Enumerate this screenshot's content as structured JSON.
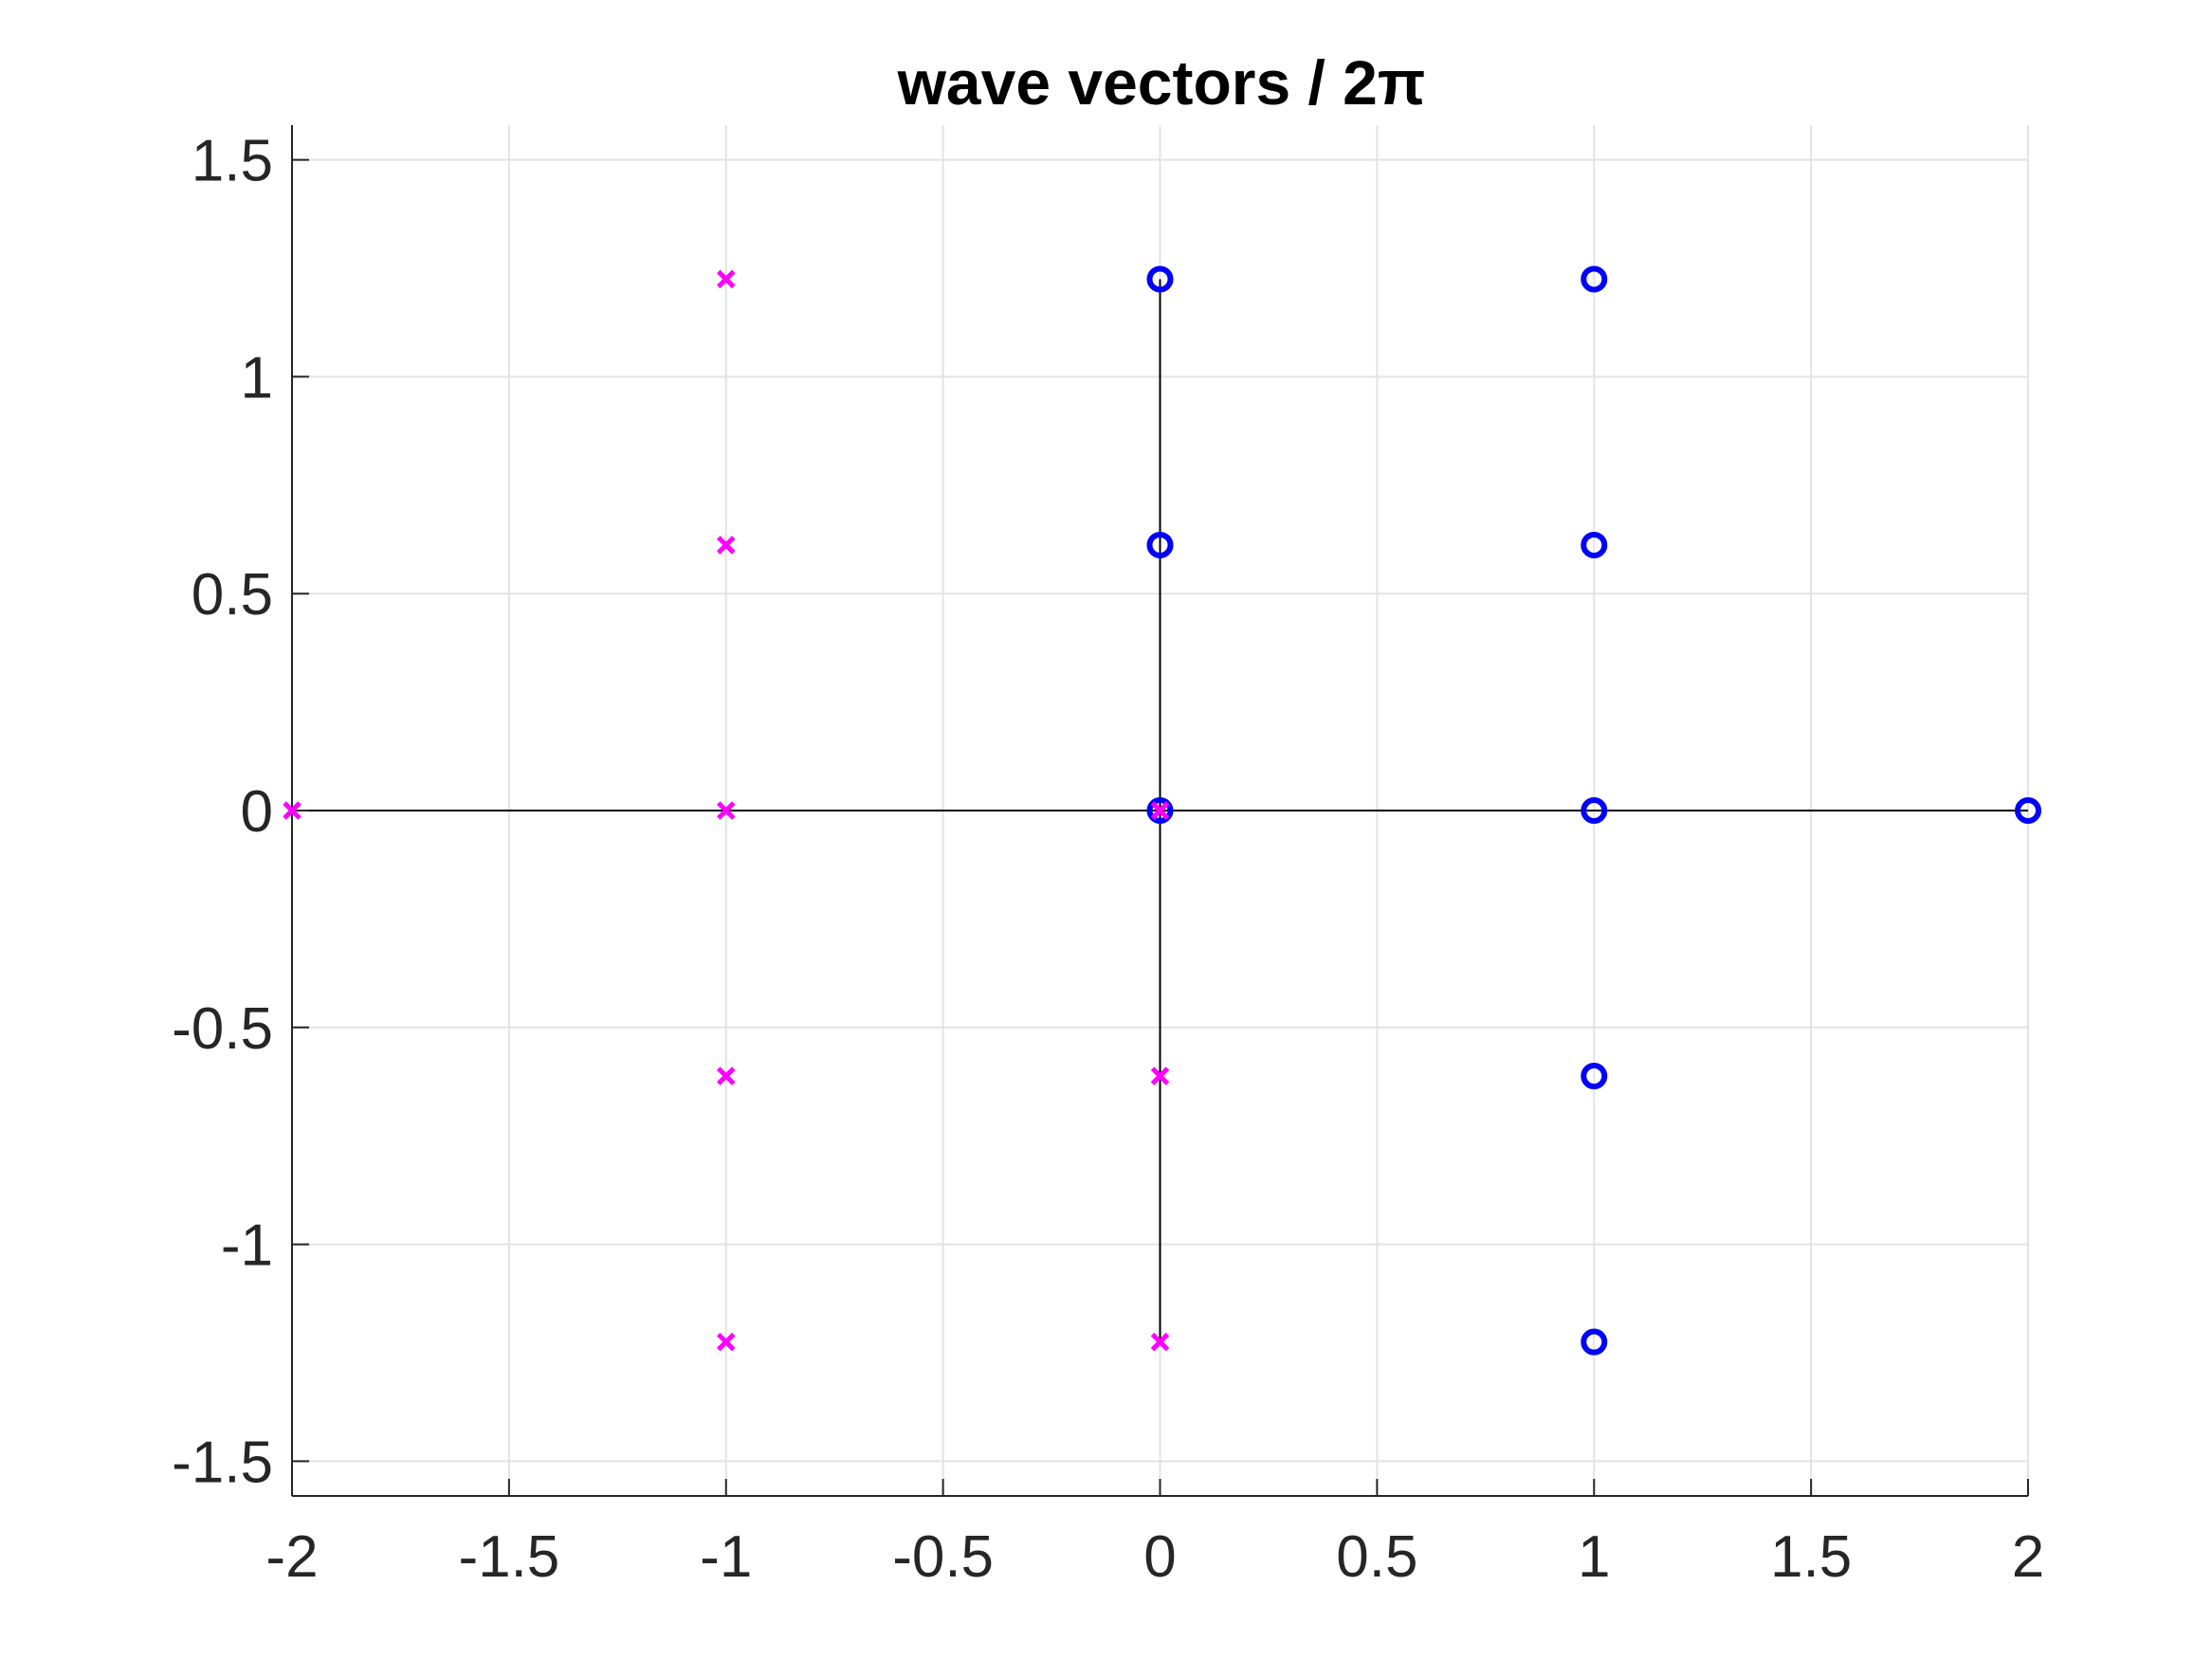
{
  "chart_data": {
    "type": "scatter",
    "title": "wave vectors / 2π",
    "xlabel": "",
    "ylabel": "",
    "xlim": [
      -2,
      2
    ],
    "ylim": [
      -1.58,
      1.58
    ],
    "x_ticks": [
      -2,
      -1.5,
      -1,
      -0.5,
      0,
      0.5,
      1,
      1.5,
      2
    ],
    "x_tick_labels": [
      "-2",
      "-1.5",
      "-1",
      "-0.5",
      "0",
      "0.5",
      "1",
      "1.5",
      "2"
    ],
    "y_ticks": [
      -1.5,
      -1,
      -0.5,
      0,
      0.5,
      1,
      1.5
    ],
    "y_tick_labels": [
      "-1.5",
      "-1",
      "-0.5",
      "0",
      "0.5",
      "1",
      "1.5"
    ],
    "grid": true,
    "reference_lines": [
      {
        "x": [
          -2,
          2
        ],
        "y": [
          0,
          0
        ],
        "color": "#000000"
      },
      {
        "x": [
          0,
          0
        ],
        "y": [
          -1.225,
          1.225
        ],
        "color": "#000000"
      }
    ],
    "series": [
      {
        "marker": "circle",
        "color": "#0000ff",
        "points": [
          [
            0,
            1.225
          ],
          [
            1,
            1.225
          ],
          [
            0,
            0.612
          ],
          [
            1,
            0.612
          ],
          [
            0,
            0
          ],
          [
            1,
            0
          ],
          [
            2,
            0
          ],
          [
            1,
            -0.612
          ],
          [
            1,
            -1.225
          ]
        ]
      },
      {
        "marker": "x",
        "color": "#ff00ff",
        "points": [
          [
            -1,
            1.225
          ],
          [
            -1,
            0.612
          ],
          [
            -2,
            0
          ],
          [
            -1,
            0
          ],
          [
            0,
            0
          ],
          [
            -1,
            -0.612
          ],
          [
            0,
            -0.612
          ],
          [
            -1,
            -1.225
          ],
          [
            0,
            -1.225
          ]
        ]
      }
    ]
  }
}
